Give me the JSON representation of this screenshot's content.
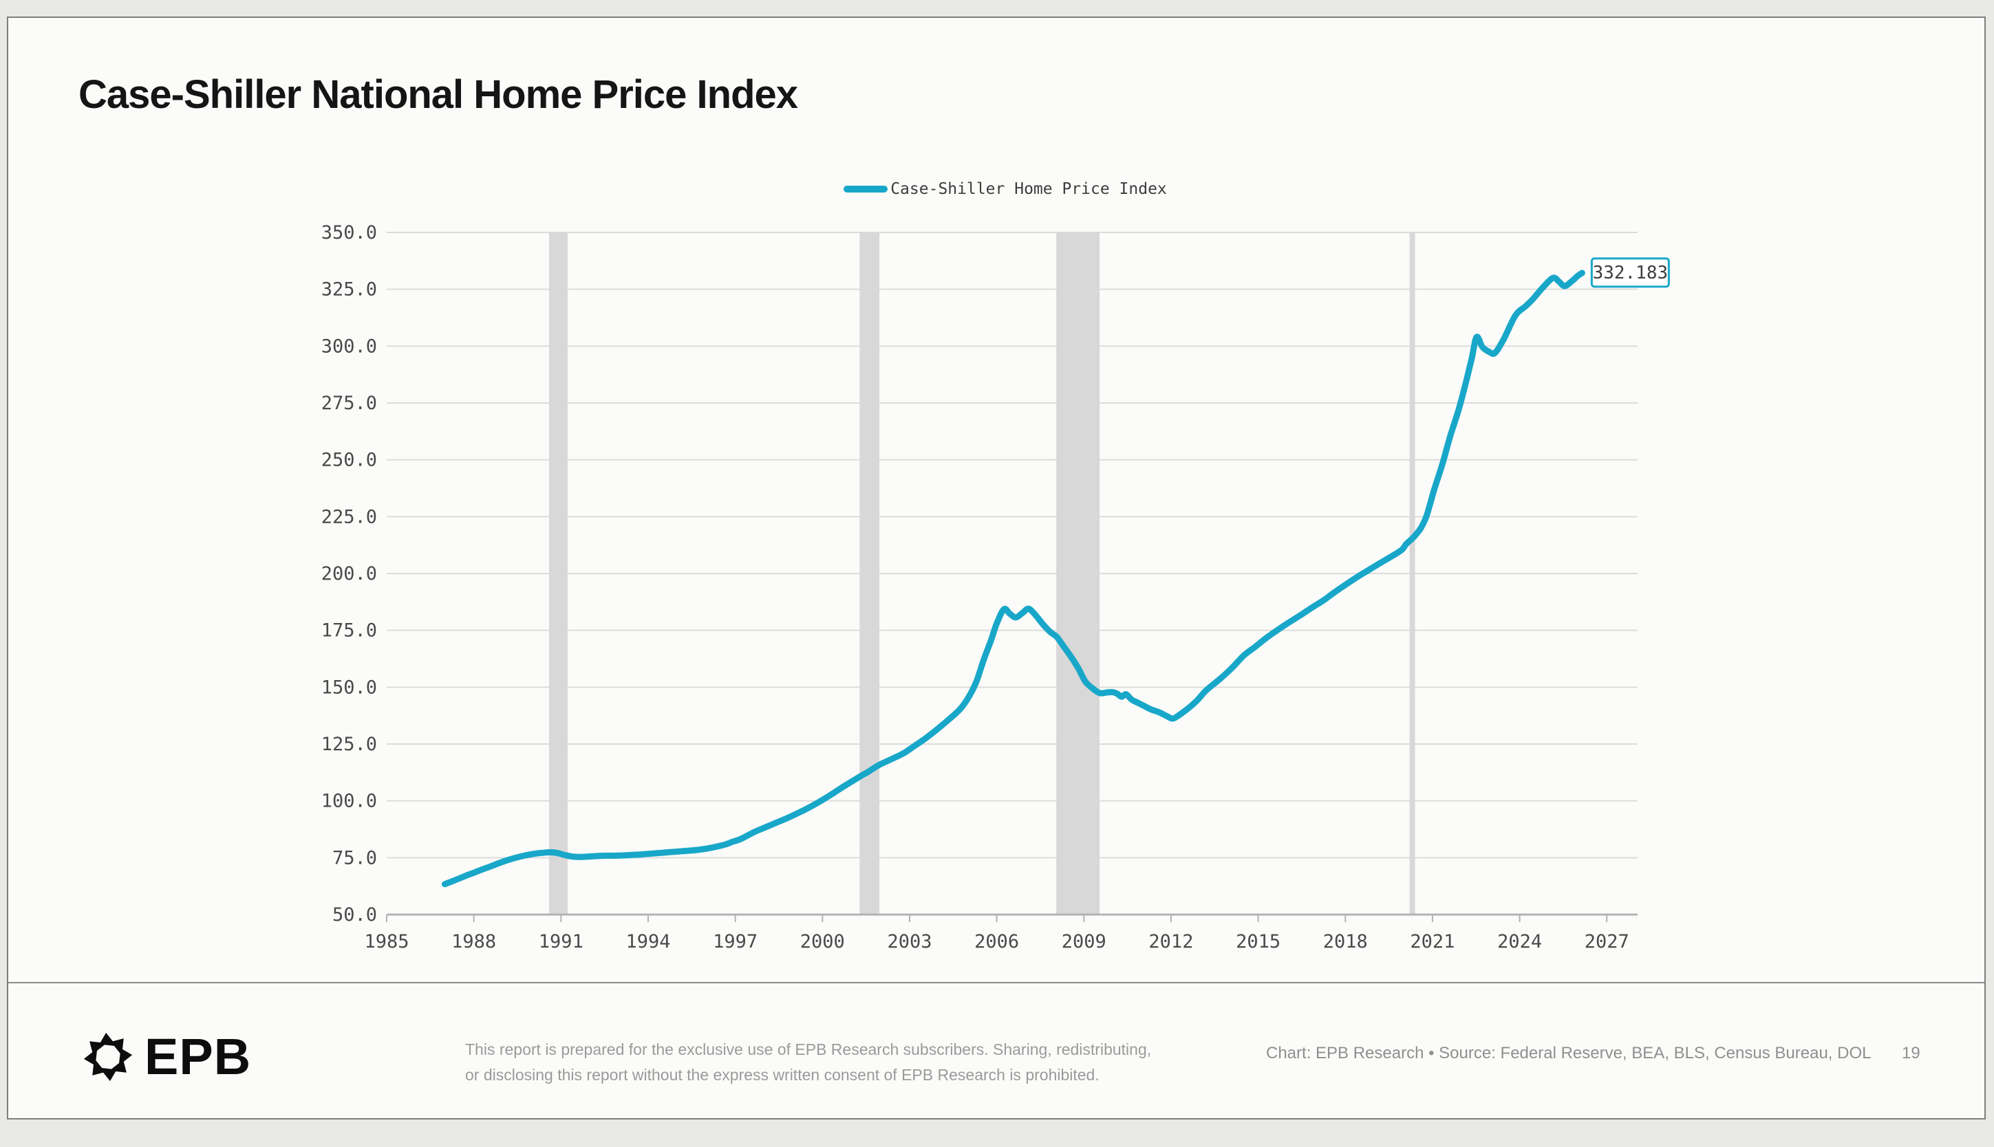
{
  "header": {
    "title": "Case-Shiller National Home Price Index"
  },
  "legend": {
    "label": "Case-Shiller Home Price Index"
  },
  "colors": {
    "accent": "#18a7c9",
    "gridline": "#dcdcdc",
    "recession_band": "#d8d8d8",
    "axis": "#b3b3b3",
    "tick_text": "#4a4a4a",
    "value_box_text": "#3e3e3e",
    "value_box_fill": "#ffffff"
  },
  "chart_data": {
    "type": "line",
    "title": "Case-Shiller National Home Price Index",
    "xlabel": "",
    "ylabel": "",
    "xlim": [
      1985,
      2028.06
    ],
    "ylim": [
      50,
      350
    ],
    "grid": true,
    "legend_position": "top-center",
    "x_ticks": [
      1985,
      1988,
      1991,
      1994,
      1997,
      2000,
      2003,
      2006,
      2009,
      2012,
      2015,
      2018,
      2021,
      2024,
      2027
    ],
    "y_ticks": [
      350,
      325,
      300,
      275,
      250,
      225,
      200,
      175,
      150,
      125,
      100,
      75,
      50
    ],
    "y_tick_decimals": 1,
    "recession_bands": [
      [
        1990.59,
        1991.23
      ],
      [
        2001.28,
        2001.96
      ],
      [
        2008.05,
        2009.54
      ],
      [
        2020.21,
        2020.4
      ]
    ],
    "end_label": {
      "text": "332.183",
      "value": 332.183
    },
    "series": [
      {
        "name": "Case-Shiller Home Price Index",
        "color": "#18a7c9",
        "points": [
          [
            1987.0,
            63.4
          ],
          [
            1987.25,
            64.6
          ],
          [
            1987.5,
            65.9
          ],
          [
            1987.75,
            67.2
          ],
          [
            1988.0,
            68.4
          ],
          [
            1988.3,
            69.9
          ],
          [
            1988.6,
            71.3
          ],
          [
            1988.9,
            72.8
          ],
          [
            1989.2,
            74.1
          ],
          [
            1989.5,
            75.2
          ],
          [
            1989.8,
            76.1
          ],
          [
            1990.1,
            76.8
          ],
          [
            1990.4,
            77.2
          ],
          [
            1990.65,
            77.4
          ],
          [
            1990.9,
            77.0
          ],
          [
            1991.15,
            76.1
          ],
          [
            1991.4,
            75.5
          ],
          [
            1991.65,
            75.3
          ],
          [
            1991.9,
            75.5
          ],
          [
            1992.2,
            75.7
          ],
          [
            1992.5,
            75.9
          ],
          [
            1992.8,
            75.9
          ],
          [
            1993.1,
            76.0
          ],
          [
            1993.4,
            76.2
          ],
          [
            1993.7,
            76.4
          ],
          [
            1994.0,
            76.7
          ],
          [
            1994.3,
            77.0
          ],
          [
            1994.6,
            77.3
          ],
          [
            1994.9,
            77.6
          ],
          [
            1995.2,
            77.9
          ],
          [
            1995.5,
            78.2
          ],
          [
            1995.8,
            78.6
          ],
          [
            1996.1,
            79.2
          ],
          [
            1996.4,
            80.0
          ],
          [
            1996.7,
            81.0
          ],
          [
            1996.9,
            82.0
          ],
          [
            1997.2,
            83.3
          ],
          [
            1997.65,
            86.3
          ],
          [
            1998.0,
            88.2
          ],
          [
            1998.45,
            90.6
          ],
          [
            1998.8,
            92.5
          ],
          [
            1999.2,
            94.9
          ],
          [
            1999.6,
            97.5
          ],
          [
            2000.0,
            100.4
          ],
          [
            2000.4,
            103.6
          ],
          [
            2000.8,
            106.9
          ],
          [
            2001.1,
            109.2
          ],
          [
            2001.3,
            110.8
          ],
          [
            2001.6,
            113.0
          ],
          [
            2001.95,
            115.8
          ],
          [
            2002.4,
            118.5
          ],
          [
            2002.8,
            121.0
          ],
          [
            2003.15,
            124.0
          ],
          [
            2003.55,
            127.5
          ],
          [
            2003.95,
            131.5
          ],
          [
            2004.35,
            135.8
          ],
          [
            2004.75,
            140.5
          ],
          [
            2005.05,
            146.0
          ],
          [
            2005.3,
            152.5
          ],
          [
            2005.55,
            162.0
          ],
          [
            2005.8,
            170.5
          ],
          [
            2006.0,
            178.0
          ],
          [
            2006.25,
            184.3
          ],
          [
            2006.45,
            182.3
          ],
          [
            2006.66,
            180.7
          ],
          [
            2006.9,
            182.8
          ],
          [
            2007.1,
            184.5
          ],
          [
            2007.35,
            181.5
          ],
          [
            2007.6,
            177.5
          ],
          [
            2007.85,
            174.2
          ],
          [
            2008.06,
            172.2
          ],
          [
            2008.3,
            168.0
          ],
          [
            2008.55,
            163.5
          ],
          [
            2008.8,
            158.5
          ],
          [
            2009.05,
            152.5
          ],
          [
            2009.3,
            149.5
          ],
          [
            2009.55,
            147.4
          ],
          [
            2009.8,
            147.7
          ],
          [
            2010.0,
            147.8
          ],
          [
            2010.15,
            147.1
          ],
          [
            2010.3,
            145.8
          ],
          [
            2010.45,
            146.9
          ],
          [
            2010.65,
            144.5
          ],
          [
            2010.85,
            143.2
          ],
          [
            2011.05,
            141.9
          ],
          [
            2011.3,
            140.3
          ],
          [
            2011.6,
            138.9
          ],
          [
            2011.85,
            137.3
          ],
          [
            2012.05,
            136.2
          ],
          [
            2012.25,
            137.5
          ],
          [
            2012.6,
            140.8
          ],
          [
            2012.9,
            144.2
          ],
          [
            2013.2,
            148.5
          ],
          [
            2013.7,
            153.8
          ],
          [
            2014.1,
            158.5
          ],
          [
            2014.5,
            163.9
          ],
          [
            2014.9,
            167.8
          ],
          [
            2015.25,
            171.4
          ],
          [
            2015.65,
            175.0
          ],
          [
            2016.05,
            178.4
          ],
          [
            2016.45,
            181.6
          ],
          [
            2016.85,
            185.0
          ],
          [
            2017.25,
            188.2
          ],
          [
            2017.6,
            191.5
          ],
          [
            2018.0,
            195.0
          ],
          [
            2018.4,
            198.4
          ],
          [
            2018.8,
            201.5
          ],
          [
            2019.2,
            204.6
          ],
          [
            2019.6,
            207.6
          ],
          [
            2019.95,
            210.5
          ],
          [
            2020.1,
            213.0
          ],
          [
            2020.35,
            216.0
          ],
          [
            2020.6,
            220.0
          ],
          [
            2020.8,
            225.5
          ],
          [
            2021.05,
            236.5
          ],
          [
            2021.35,
            248.5
          ],
          [
            2021.6,
            260.0
          ],
          [
            2021.9,
            272.0
          ],
          [
            2022.15,
            284.0
          ],
          [
            2022.35,
            294.5
          ],
          [
            2022.52,
            304.0
          ],
          [
            2022.72,
            299.6
          ],
          [
            2022.95,
            297.5
          ],
          [
            2023.15,
            297.0
          ],
          [
            2023.45,
            303.0
          ],
          [
            2023.85,
            313.4
          ],
          [
            2024.2,
            317.5
          ],
          [
            2024.45,
            320.6
          ],
          [
            2024.8,
            325.8
          ],
          [
            2025.15,
            330.0
          ],
          [
            2025.35,
            328.4
          ],
          [
            2025.55,
            326.4
          ],
          [
            2025.8,
            328.6
          ],
          [
            2026.0,
            330.9
          ],
          [
            2026.15,
            332.183
          ]
        ]
      }
    ]
  },
  "footer": {
    "brand": "EPB",
    "disclaimer_line1": "This report is prepared for the exclusive use of EPB Research subscribers. Sharing, redistributing,",
    "disclaimer_line2": "or disclosing this report without the express written consent of EPB Research is prohibited.",
    "credits": "Chart: EPB Research  •  Source: Federal Reserve, BEA, BLS, Census Bureau, DOL",
    "page_number": "19"
  }
}
